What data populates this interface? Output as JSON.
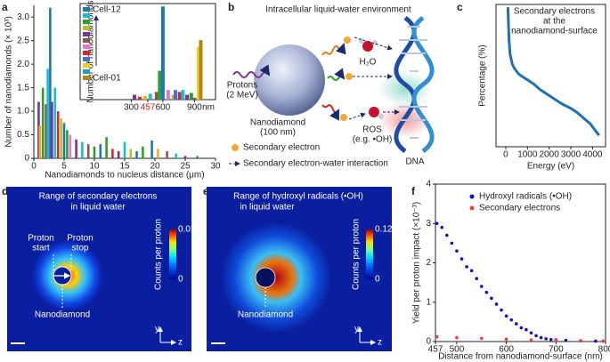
{
  "chart_data": [
    {
      "type": "bar",
      "xlabel": "Nanodiamonds to nucleus distance (μm)",
      "ylabel": "Number of nanodiamonds (× 10³)",
      "xlim": [
        0,
        30
      ],
      "xticks": [
        0,
        5,
        10,
        15,
        20,
        25,
        30
      ],
      "ylim": [
        0,
        3.25
      ],
      "yticks": [
        0,
        0.5,
        {
          "value": 1,
          "label": "1.0"
        },
        1.5,
        {
          "value": 2,
          "label": "2.0"
        },
        2.5,
        {
          "value": 3,
          "label": "3.0"
        }
      ],
      "x": [
        0.8,
        1.0,
        1.5,
        2.0,
        2.3,
        2.7,
        3.0,
        3.5,
        4.0,
        4.5,
        5.0,
        5.5,
        6.0,
        7.0,
        8.0,
        9.0,
        10.0,
        11.0,
        12.0,
        13.0,
        14.0,
        15.0,
        16.0,
        17.0,
        18.0,
        19.5,
        20.5,
        22.0,
        23.5,
        25.0,
        27.0
      ],
      "values": [
        1.2,
        0.7,
        1.5,
        1.15,
        1.9,
        3.2,
        1.2,
        1.5,
        1.0,
        0.85,
        0.75,
        0.6,
        0.5,
        0.4,
        0.35,
        0.3,
        0.25,
        0.3,
        0.45,
        0.2,
        0.15,
        0.35,
        0.2,
        0.15,
        0.25,
        0.38,
        0.2,
        0.15,
        0.1,
        0.05,
        0.05
      ],
      "colors": [
        "#7b3294",
        "#e8b21c",
        "#2ca02c",
        "#8c564b",
        "#17becf",
        "#1f77b4",
        "#7b3294",
        "#17becf",
        "#d62728",
        "#bcbd22",
        "#1f77b4",
        "#2ca02c",
        "#e377c2",
        "#7b3294",
        "#17becf",
        "#8c564b",
        "#2ca02c",
        "#1f77b4",
        "#2ca02c",
        "#d62728",
        "#7b3294",
        "#17becf",
        "#bcbd22",
        "#1f77b4",
        "#2ca02c",
        "#1f77b4",
        "#e8b21c",
        "#8c564b",
        "#17becf",
        "#7b3294",
        "#2ca02c"
      ]
    },
    {
      "type": "bar",
      "ylabel": "Number of nanodiamonds",
      "xlabel": "nm",
      "xlim": [
        0,
        1100
      ],
      "xticks": [
        300,
        457,
        600,
        900
      ],
      "xtick_colors": [
        "#222",
        "#e41a1c",
        "#222",
        "#222"
      ],
      "ylim": [
        0,
        1
      ],
      "x": [
        330,
        380,
        430,
        480,
        540,
        570,
        600,
        650,
        700,
        720,
        760,
        790,
        830,
        870,
        900,
        940,
        960
      ],
      "values": [
        0.05,
        0.03,
        0.04,
        0.06,
        0.08,
        0.3,
        0.97,
        0.1,
        0.05,
        0.1,
        0.08,
        0.1,
        0.05,
        0.07,
        0.02,
        0.55,
        0.62
      ],
      "colors": [
        "#7b3294",
        "#d62728",
        "#e8b21c",
        "#17becf",
        "#8c564b",
        "#2ca02c",
        "#1f77b4",
        "#e377c2",
        "#bcbd22",
        "#4a6fdc",
        "#d62728",
        "#17becf",
        "#7b3294",
        "#2ca02c",
        "#8c564b",
        "#e8d21c",
        "#b8860b"
      ],
      "legend": {
        "labels": [
          "Cell-12",
          "Cell-01"
        ],
        "colors": [
          "#1f77b4",
          "#17becf",
          "#2ca02c",
          "#bcbd22",
          "#7b3294",
          "#8c564b",
          "#e377c2",
          "#d62728",
          "#4a6fdc",
          "#e8d21c",
          "#17a2b8",
          "#b8860b"
        ]
      }
    },
    {
      "type": "line",
      "title": [
        "Secondary electrons",
        "at the",
        "nanodiamond-surface"
      ],
      "xlabel": "Energy (eV)",
      "ylabel": "Percentage (%)",
      "xlim": [
        -450,
        4600
      ],
      "xticks": [
        0,
        1000,
        2000,
        3000,
        4000
      ],
      "ylim": [
        0,
        1
      ],
      "color": "#1f6fb4",
      "x": [
        100,
        150,
        200,
        300,
        400,
        600,
        800,
        1000,
        1300,
        1600,
        2000,
        2300,
        2600,
        3000,
        3300,
        3600,
        3900,
        4100,
        4300
      ],
      "values": [
        0.98,
        0.75,
        0.65,
        0.58,
        0.55,
        0.51,
        0.49,
        0.47,
        0.44,
        0.4,
        0.36,
        0.33,
        0.3,
        0.27,
        0.24,
        0.2,
        0.16,
        0.12,
        0.08
      ]
    },
    {
      "type": "scatter",
      "xlabel": "Distance from nanodiamond-surface (nm)",
      "ylabel": "Yield per proton impact (×10⁻³)",
      "xlim": [
        457,
        800
      ],
      "xticks": [
        457,
        500,
        600,
        700,
        800
      ],
      "ylim": [
        0,
        4
      ],
      "yticks": [
        0,
        1,
        2,
        3,
        4
      ],
      "legend_position": "upper right",
      "series": [
        {
          "name": "Hydroxyl radicals (•OH)",
          "color": "#1010d0",
          "x": [
            460,
            470,
            480,
            490,
            500,
            510,
            520,
            530,
            540,
            550,
            560,
            570,
            580,
            590,
            600,
            610,
            620,
            630,
            640,
            650,
            660,
            670,
            680,
            690,
            700,
            720,
            750,
            780,
            795
          ],
          "values": [
            3.0,
            2.9,
            2.7,
            2.5,
            2.3,
            2.1,
            1.9,
            1.8,
            1.6,
            1.4,
            1.25,
            1.1,
            0.95,
            0.8,
            0.65,
            0.55,
            0.45,
            0.35,
            0.3,
            0.22,
            0.15,
            0.1,
            0.07,
            0.05,
            0.04,
            0.03,
            0.02,
            0.01,
            0.01
          ]
        },
        {
          "name": "Secondary electrons",
          "color": "#e8413c",
          "x": [
            460,
            500,
            550,
            600,
            650,
            700,
            750,
            795
          ],
          "values": [
            0.12,
            0.1,
            0.08,
            0.06,
            0.04,
            0.03,
            0.02,
            0.01
          ]
        }
      ]
    }
  ],
  "panels": {
    "letters": [
      "a",
      "b",
      "c",
      "d",
      "e",
      "f"
    ],
    "b": {
      "title": "Intracellular liquid-water environment",
      "protons": [
        "Protons",
        "(2 MeV)"
      ],
      "nanodiamond": [
        "Nanodiamond",
        "(100 nm)"
      ],
      "water": "H₂O",
      "ros": [
        "ROS",
        "(e.g. •OH)"
      ],
      "dna": "DNA",
      "legend": [
        "Secondary electron",
        "Secondary electron-water interaction"
      ]
    },
    "d": {
      "title": [
        "Range of secondary electrons",
        "in liquid water"
      ],
      "start": [
        "Proton",
        "start"
      ],
      "stop": [
        "Proton",
        "stop"
      ],
      "nanodiamond": "Nanodiamond",
      "colorbar": {
        "label": "Counts per proton",
        "ticks": [
          0,
          0.01
        ]
      },
      "axes": [
        "y",
        "z"
      ]
    },
    "e": {
      "title": [
        "Range of hydroxyl radicals (•OH)",
        "in liquid water"
      ],
      "nanodiamond": "Nanodiamond",
      "colorbar": {
        "label": "Counts per proton",
        "ticks": [
          0,
          0.12
        ]
      },
      "axes": [
        "y",
        "z"
      ]
    }
  }
}
